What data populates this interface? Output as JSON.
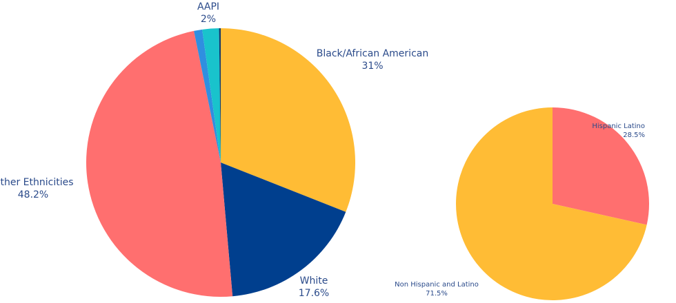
{
  "chart_data": [
    {
      "type": "pie",
      "categories": [
        "Black/African American",
        "White",
        "Other Ethnicities",
        null,
        "AAPI",
        null
      ],
      "values": [
        31,
        17.6,
        48.2,
        1,
        2,
        0.2
      ],
      "value_labels": [
        "31%",
        "17.6%",
        "48.2%",
        null,
        "2%",
        null
      ],
      "colors": [
        "#ffbc35",
        "#003f8e",
        "#ff6f6f",
        "#2f8fe0",
        "#19c3cc",
        "#123a6b"
      ]
    },
    {
      "type": "pie",
      "categories": [
        "Hispanic Latino",
        "Non Hispanic and Latino"
      ],
      "values": [
        28.5,
        71.5
      ],
      "value_labels": [
        "28.5%",
        "71.5%"
      ],
      "colors": [
        "#ff6f6f",
        "#ffbc35"
      ]
    }
  ]
}
